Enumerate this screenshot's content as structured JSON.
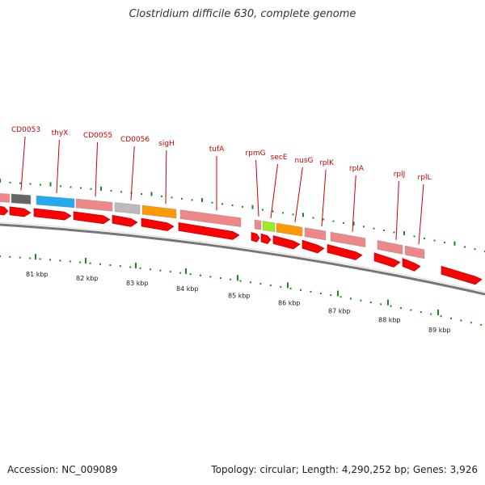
{
  "title": "Clostridium difficile 630, complete genome",
  "accession_text": "Accession: NC_009089",
  "summary_text": "Topology: circular; Length: 4,290,252 bp; Genes: 3,926",
  "colors": {
    "label": "#cc0000",
    "leader": "#cc0000",
    "cds_arrow": "#ff0000",
    "backbone": "#777777",
    "tick": "#1a8a1a",
    "gc_skew": "#44aa22"
  },
  "scale": {
    "unit": "kbp",
    "labels": [
      "81 kbp",
      "82 kbp",
      "83 kbp",
      "84 kbp",
      "85 kbp",
      "86 kbp",
      "87 kbp",
      "88 kbp",
      "89 kbp"
    ]
  },
  "genes": [
    {
      "name": "CD0053",
      "color": "#666666"
    },
    {
      "name": "thyX",
      "color": "#22aaee"
    },
    {
      "name": "CD0055",
      "color": "#ee8888"
    },
    {
      "name": "CD0056",
      "color": "#bbbbbb"
    },
    {
      "name": "sigH",
      "color": "#ff9900"
    },
    {
      "name": "tufA",
      "color": "#ee8888"
    },
    {
      "name": "rpmG",
      "color": "#ee8888"
    },
    {
      "name": "secE",
      "color": "#99ee22"
    },
    {
      "name": "nusG",
      "color": "#ff9900"
    },
    {
      "name": "rplK",
      "color": "#ee8888"
    },
    {
      "name": "rplA",
      "color": "#ee8888"
    },
    {
      "name": "rplJ",
      "color": "#ee8888"
    },
    {
      "name": "rplL",
      "color": "#ee8888"
    }
  ]
}
